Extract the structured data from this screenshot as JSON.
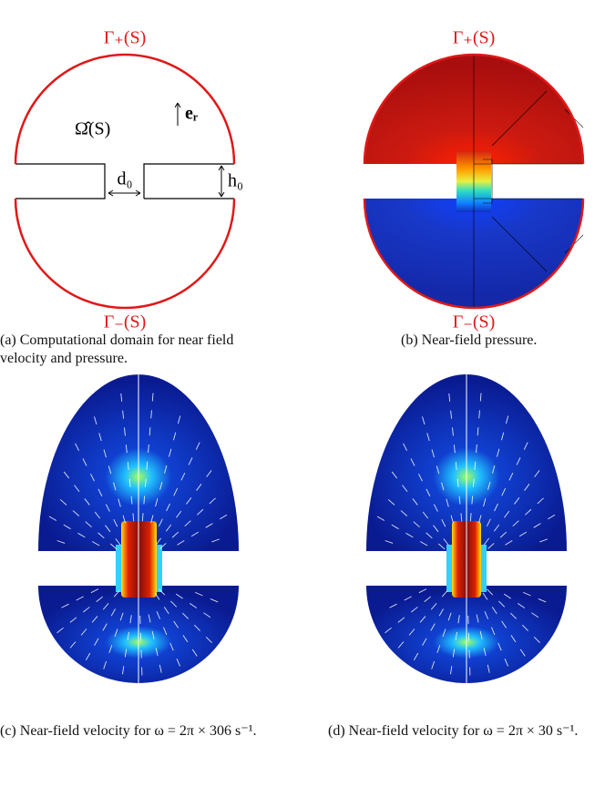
{
  "panels": [
    {
      "labels": {
        "top": "Γ₊(S)",
        "bottom": "Γ₋(S)",
        "domain": "Ω̂(S)",
        "er": "eᵣ",
        "d0": "d₀",
        "h0": "h₀"
      },
      "caption": "(a) Computational domain for near field velocity and pressure."
    },
    {
      "labels": {
        "top": "Γ₊(S)",
        "bottom": "Γ₋(S)"
      },
      "caption": "(b) Near-field pressure."
    },
    {
      "caption": "(c) Near-field velocity for ω = 2π × 306 s⁻¹."
    },
    {
      "caption": "(d) Near-field velocity for ω = 2π × 30 s⁻¹."
    }
  ]
}
